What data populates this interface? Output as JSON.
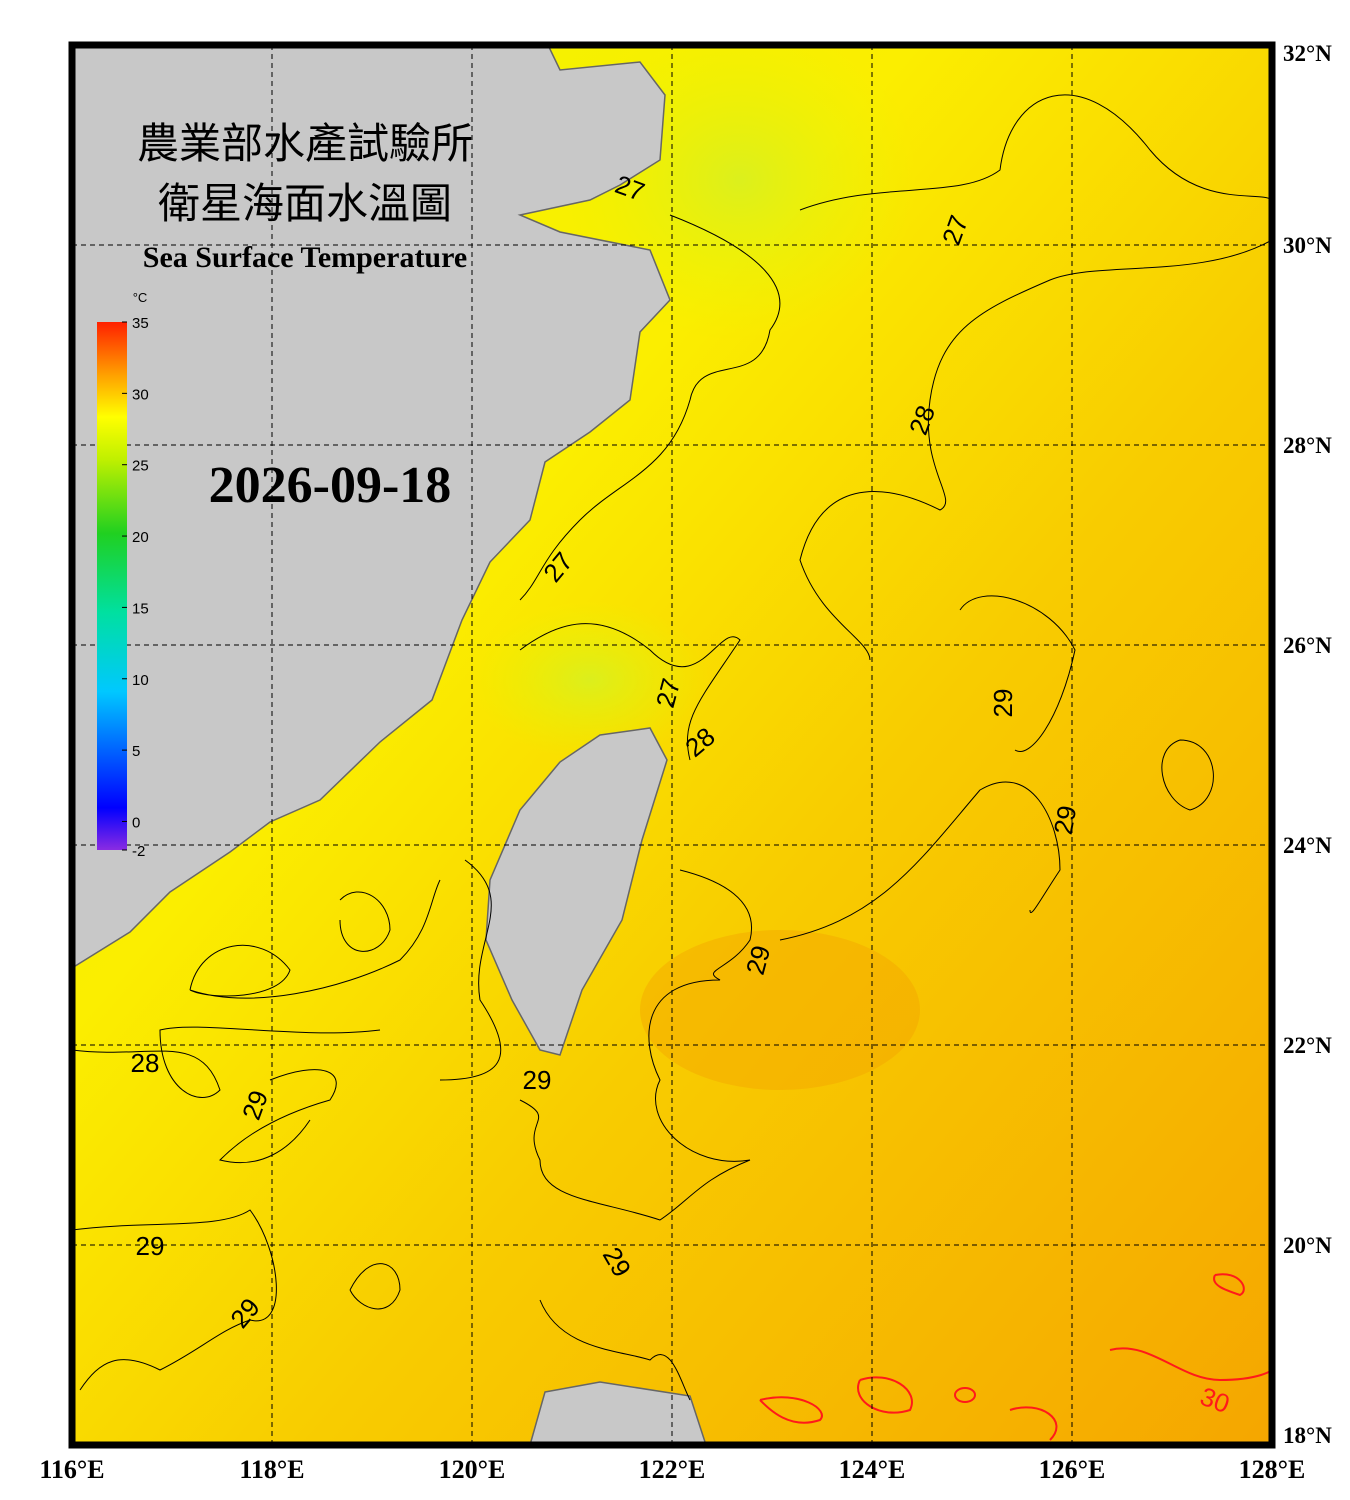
{
  "header": {
    "title_line1": "農業部水產試驗所",
    "title_line2": "衛星海面水溫圖",
    "title_en": "Sea Surface Temperature",
    "date": "2026-09-18"
  },
  "colorbar": {
    "unit": "°C",
    "range": [
      -2,
      35
    ],
    "ticks": [
      35,
      30,
      25,
      20,
      15,
      10,
      5,
      0,
      -2
    ]
  },
  "map": {
    "lon_range": [
      116,
      128
    ],
    "lat_range": [
      18,
      32
    ],
    "lon_ticks": [
      {
        "value": 116,
        "label": "116°E"
      },
      {
        "value": 118,
        "label": "118°E"
      },
      {
        "value": 120,
        "label": "120°E"
      },
      {
        "value": 122,
        "label": "122°E"
      },
      {
        "value": 124,
        "label": "124°E"
      },
      {
        "value": 126,
        "label": "126°E"
      },
      {
        "value": 128,
        "label": "128°E"
      }
    ],
    "lat_ticks": [
      {
        "value": 32,
        "label": "32°N"
      },
      {
        "value": 30,
        "label": "30°N"
      },
      {
        "value": 28,
        "label": "28°N"
      },
      {
        "value": 26,
        "label": "26°N"
      },
      {
        "value": 24,
        "label": "24°N"
      },
      {
        "value": 22,
        "label": "22°N"
      },
      {
        "value": 20,
        "label": "20°N"
      },
      {
        "value": 18,
        "label": "18°N"
      }
    ],
    "contour_labels": [
      "27",
      "27",
      "28",
      "27",
      "27",
      "28",
      "29",
      "29",
      "29",
      "28",
      "29",
      "29",
      "29",
      "29",
      "29",
      "30"
    ]
  }
}
